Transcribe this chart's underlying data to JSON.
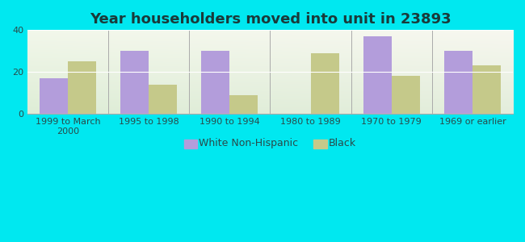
{
  "title": "Year householders moved into unit in 23893",
  "categories": [
    "1999 to March\n2000",
    "1995 to 1998",
    "1990 to 1994",
    "1980 to 1989",
    "1970 to 1979",
    "1969 or earlier"
  ],
  "white_values": [
    17,
    30,
    30,
    0,
    37,
    30
  ],
  "black_values": [
    25,
    14,
    9,
    29,
    18,
    23
  ],
  "white_color": "#b39ddb",
  "black_color": "#c5c98a",
  "background_outer": "#00e8f0",
  "ylim": [
    0,
    40
  ],
  "yticks": [
    0,
    20,
    40
  ],
  "bar_width": 0.35,
  "title_fontsize": 13,
  "tick_fontsize": 8,
  "legend_fontsize": 9,
  "title_color": "#1a3a3a",
  "text_color": "#2a4a4a"
}
